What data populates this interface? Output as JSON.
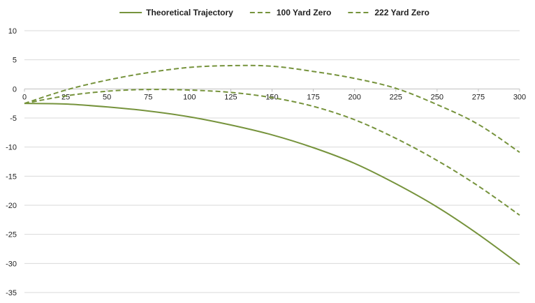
{
  "chart_data": {
    "type": "line",
    "title": "",
    "xlabel": "",
    "ylabel": "",
    "xlim": [
      0,
      300
    ],
    "ylim": [
      -35,
      10
    ],
    "x_ticks": [
      "0",
      "25",
      "50",
      "75",
      "100",
      "125",
      "150",
      "175",
      "200",
      "225",
      "250",
      "275",
      "300"
    ],
    "y_ticks": [
      "10",
      "5",
      "0",
      "-5",
      "-10",
      "-15",
      "-20",
      "-25",
      "-30",
      "-35"
    ],
    "grid": "horizontal",
    "legend_position": "top",
    "color": "#76933C",
    "series": [
      {
        "name": "Theoretical Trajectory",
        "style": "solid",
        "x": [
          0,
          25,
          50,
          75,
          100,
          125,
          150,
          175,
          200,
          225,
          250,
          275,
          300
        ],
        "y": [
          -2.5,
          -2.6,
          -3.1,
          -3.8,
          -4.8,
          -6.2,
          -7.9,
          -10.1,
          -12.8,
          -16.3,
          -20.3,
          -25.0,
          -30.2
        ]
      },
      {
        "name": "100 Yard Zero",
        "style": "dashed",
        "x": [
          0,
          25,
          50,
          75,
          100,
          125,
          150,
          175,
          200,
          225,
          250,
          275,
          300
        ],
        "y": [
          -2.5,
          -1.2,
          -0.4,
          -0.1,
          -0.2,
          -0.6,
          -1.5,
          -3.0,
          -5.3,
          -8.5,
          -12.3,
          -16.7,
          -21.7
        ]
      },
      {
        "name": "222 Yard Zero",
        "style": "dashed",
        "x": [
          0,
          25,
          50,
          75,
          100,
          125,
          150,
          175,
          200,
          225,
          250,
          275,
          300
        ],
        "y": [
          -2.5,
          -0.2,
          1.5,
          2.8,
          3.7,
          4.0,
          3.9,
          3.0,
          1.8,
          0.1,
          -2.7,
          -6.1,
          -10.9
        ]
      }
    ]
  }
}
